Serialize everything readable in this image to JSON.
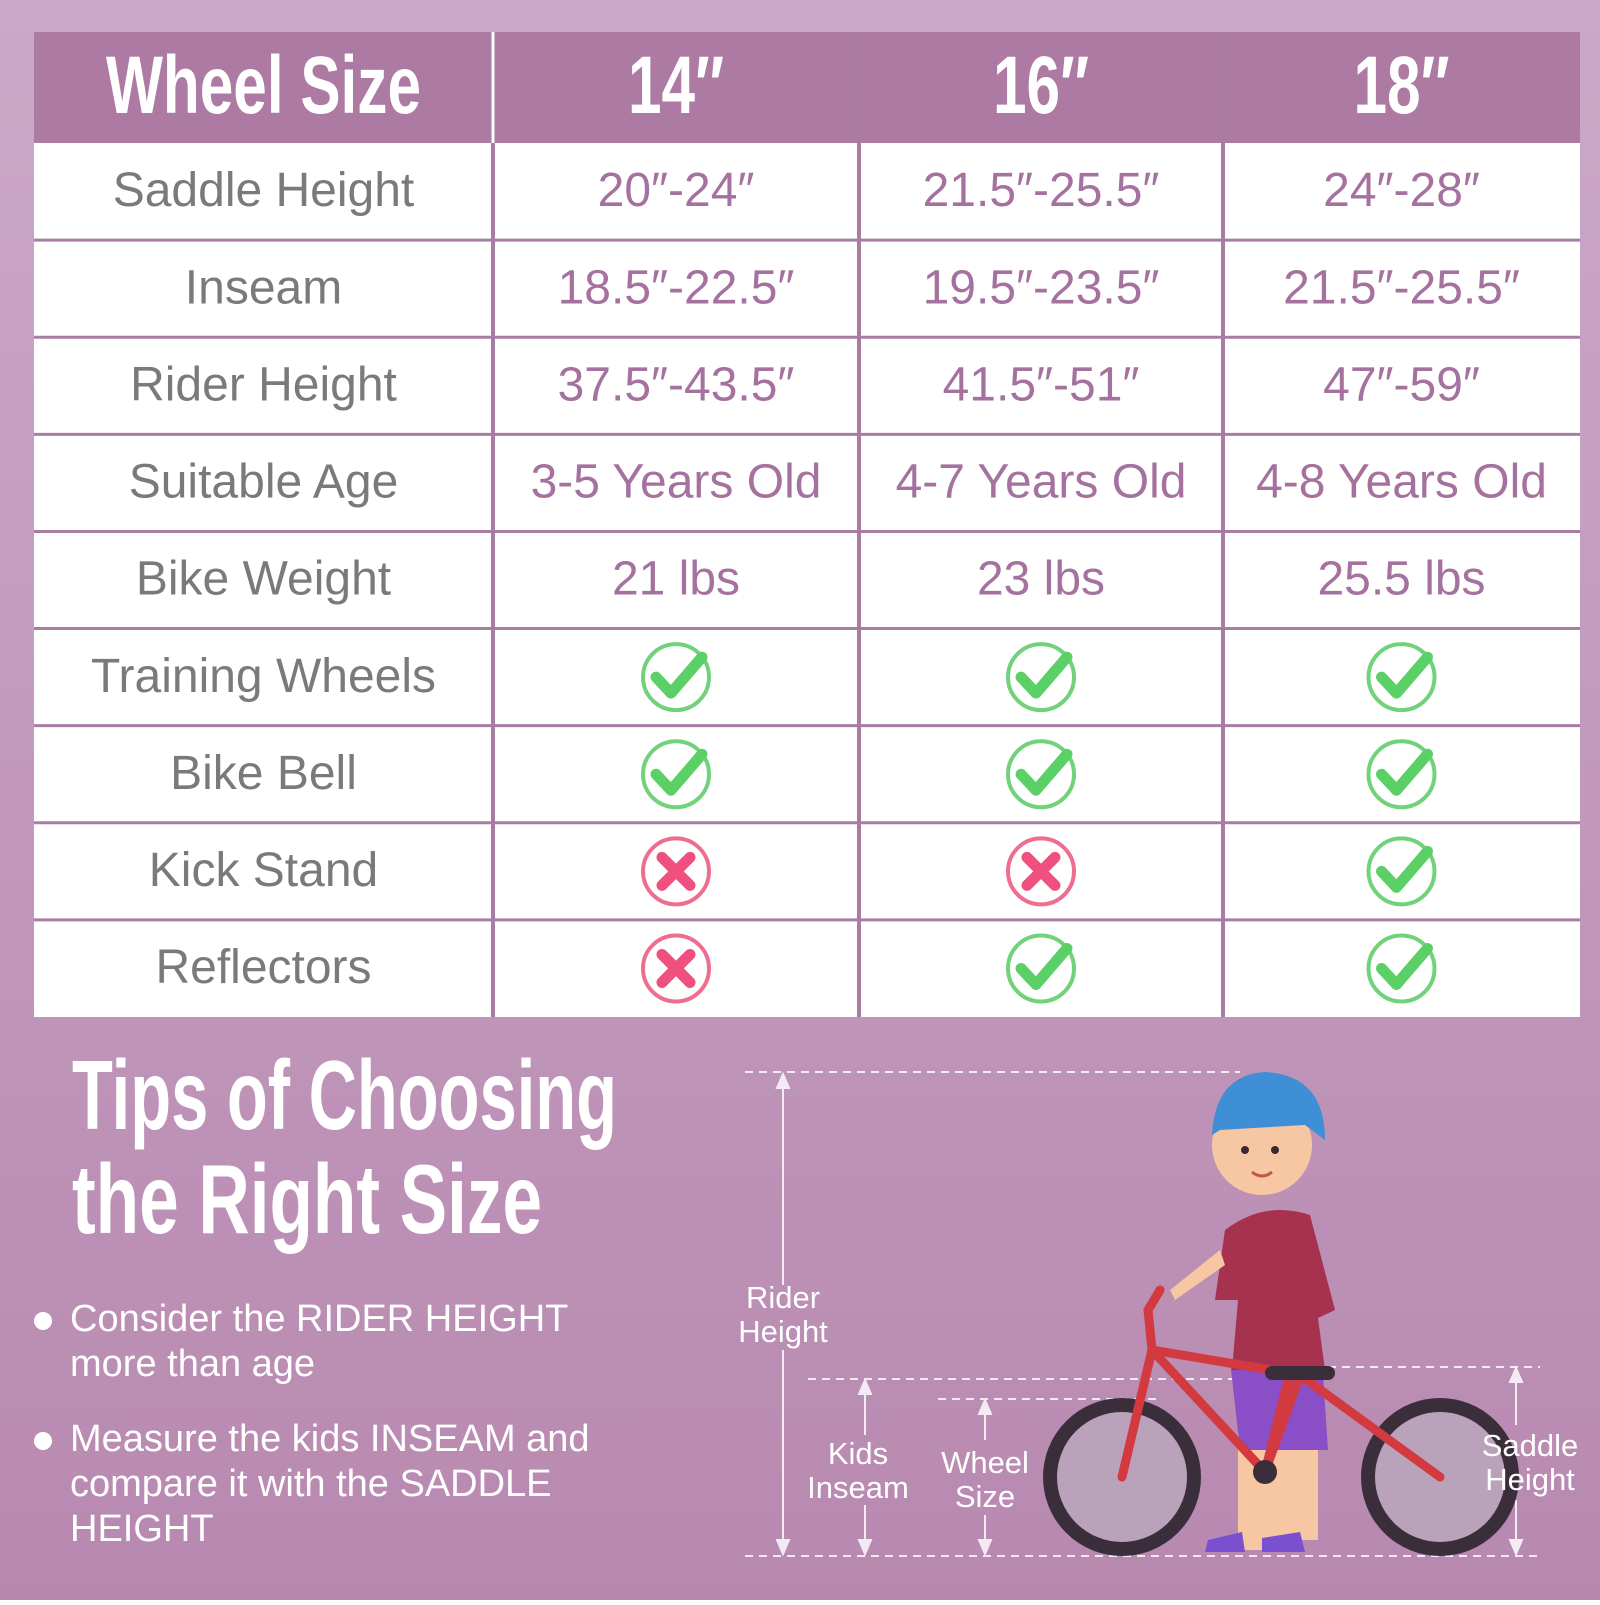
{
  "table": {
    "header": [
      "Wheel Size",
      "14″",
      "16″",
      "18″"
    ],
    "rows": [
      [
        "Saddle Height",
        "20″-24″",
        "21.5″-25.5″",
        "24″-28″"
      ],
      [
        "Inseam",
        "18.5″-22.5″",
        "19.5″-23.5″",
        "21.5″-25.5″"
      ],
      [
        "Rider Height",
        "37.5″-43.5″",
        "41.5″-51″",
        "47″-59″"
      ],
      [
        "Suitable Age",
        "3-5 Years Old",
        "4-7 Years Old",
        "4-8 Years Old"
      ],
      [
        "Bike Weight",
        "21 lbs",
        "23 lbs",
        "25.5 lbs"
      ],
      [
        "Training Wheels",
        true,
        true,
        true
      ],
      [
        "Bike Bell",
        true,
        true,
        true
      ],
      [
        "Kick Stand",
        false,
        false,
        true
      ],
      [
        "Reflectors",
        false,
        true,
        true
      ]
    ]
  },
  "tips": {
    "title": [
      "Tips of Choosing",
      "the Right Size"
    ],
    "bullets": [
      [
        "Consider the RIDER HEIGHT",
        "more than age"
      ],
      [
        "Measure the kids INSEAM and",
        "compare it with the SADDLE",
        "HEIGHT"
      ]
    ]
  },
  "diagram": {
    "rider_height": [
      "Rider",
      "Height"
    ],
    "kids_inseam": [
      "Kids",
      "Inseam"
    ],
    "wheel_size": [
      "Wheel",
      "Size"
    ],
    "saddle_height": [
      "Saddle",
      "Height"
    ]
  }
}
